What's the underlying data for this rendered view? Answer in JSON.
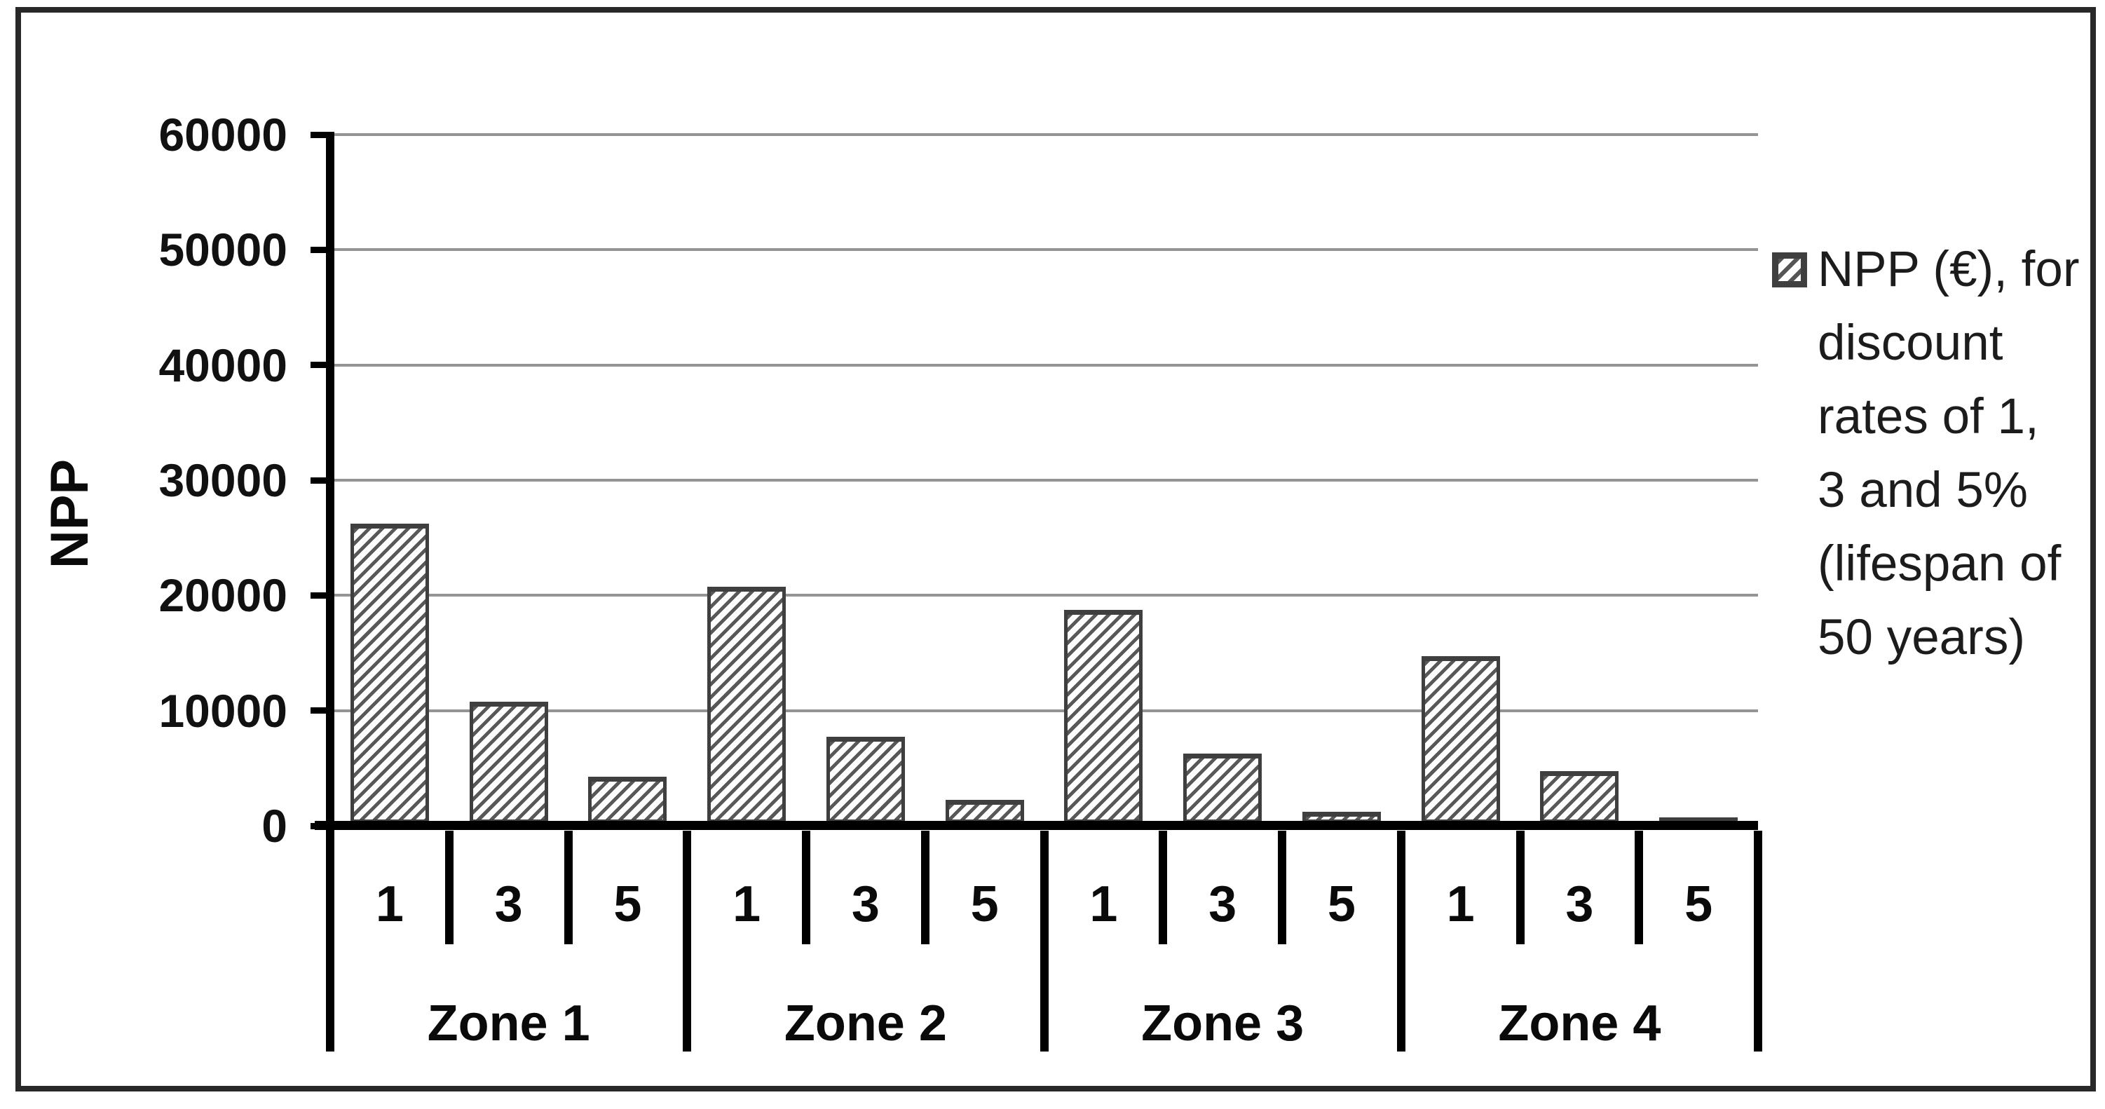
{
  "chart_data": {
    "type": "bar",
    "title": "",
    "xlabel": "",
    "ylabel": "NPP",
    "ylim": [
      0,
      60000
    ],
    "yticks": [
      0,
      10000,
      20000,
      30000,
      40000,
      50000,
      60000
    ],
    "ytick_labels": [
      "0",
      "10000",
      "20000",
      "30000",
      "40000",
      "50000",
      "60000"
    ],
    "grid": true,
    "legend_position": "right",
    "bar_pattern": "diagonal-hatch",
    "groups": [
      {
        "label": "Zone 1",
        "categories": [
          "1",
          "3",
          "5"
        ],
        "values": [
          26000,
          10500,
          4000
        ]
      },
      {
        "label": "Zone 2",
        "categories": [
          "1",
          "3",
          "5"
        ],
        "values": [
          20500,
          7500,
          2000
        ]
      },
      {
        "label": "Zone 3",
        "categories": [
          "1",
          "3",
          "5"
        ],
        "values": [
          18500,
          6000,
          1000
        ]
      },
      {
        "label": "Zone 4",
        "categories": [
          "1",
          "3",
          "5"
        ],
        "values": [
          14500,
          4500,
          500
        ]
      }
    ],
    "series": [
      {
        "name": "NPP (€), for discount rates of 1, 3 and 5% (lifespan of 50 years)",
        "values": [
          26000,
          10500,
          4000,
          20500,
          7500,
          2000,
          18500,
          6000,
          1000,
          14500,
          4500,
          500
        ]
      }
    ]
  },
  "legend": {
    "swatch_icon": "diagonal-hatch-swatch",
    "lines": [
      "NPP (€), for",
      "discount",
      "rates of 1,",
      "3 and 5%",
      "(lifespan of",
      "50 years)"
    ]
  },
  "colors": {
    "bar_fill": "#ffffff",
    "bar_border": "#3f3f3f",
    "bar_hatch": "#585858",
    "gridline": "#949494",
    "axis": "#000000",
    "text": "#0a0a0a",
    "figure_border": "#282828"
  }
}
